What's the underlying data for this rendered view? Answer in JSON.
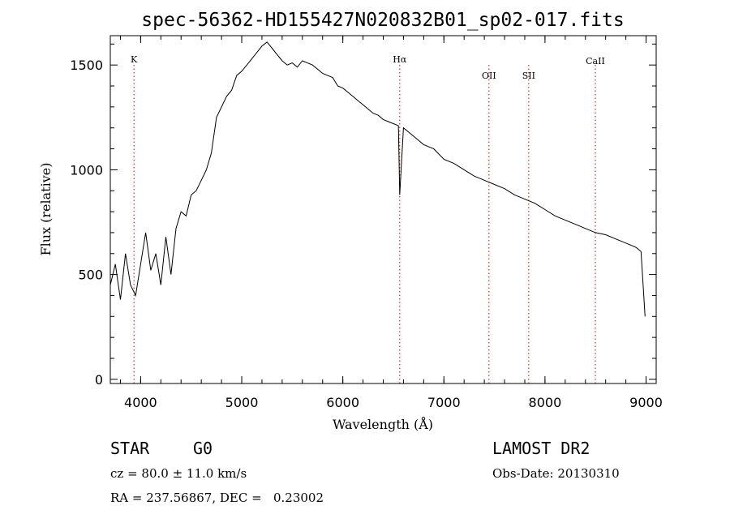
{
  "chart_data": {
    "type": "line",
    "title": "spec-56362-HD155427N020832B01_sp02-017.fits",
    "xlabel": "Wavelength (Å)",
    "ylabel": "Flux (relative)",
    "xlim": [
      3700,
      9100
    ],
    "ylim": [
      -20,
      1640
    ],
    "x_ticks": [
      4000,
      5000,
      6000,
      7000,
      8000,
      9000
    ],
    "y_ticks": [
      0,
      500,
      1000,
      1500
    ],
    "grid": false,
    "line_color": "#000000",
    "marker_color": "#cc0000",
    "lines": [
      {
        "label": "K",
        "x": 3934
      },
      {
        "label": "Hα",
        "x": 6563
      },
      {
        "label": "OII",
        "x": 7446
      },
      {
        "label": "SII",
        "x": 7839
      },
      {
        "label": "CaII",
        "x": 8498
      }
    ],
    "series": [
      {
        "x": [
          3700,
          3750,
          3800,
          3850,
          3900,
          3950,
          4000,
          4050,
          4100,
          4150,
          4200,
          4250,
          4300,
          4350,
          4400,
          4450,
          4500,
          4550,
          4600,
          4650,
          4700,
          4750,
          4800,
          4850,
          4900,
          4950,
          5000,
          5050,
          5100,
          5150,
          5200,
          5250,
          5300,
          5350,
          5400,
          5450,
          5500,
          5550,
          5600,
          5650,
          5700,
          5750,
          5800,
          5850,
          5900,
          5950,
          6000,
          6050,
          6100,
          6150,
          6200,
          6250,
          6300,
          6350,
          6400,
          6450,
          6500,
          6550,
          6563,
          6600,
          6650,
          6700,
          6800,
          6900,
          7000,
          7100,
          7200,
          7300,
          7400,
          7500,
          7600,
          7700,
          7800,
          7900,
          8000,
          8100,
          8200,
          8300,
          8400,
          8500,
          8600,
          8700,
          8800,
          8900,
          8950,
          8990
        ],
        "y": [
          450,
          550,
          380,
          600,
          450,
          400,
          550,
          700,
          520,
          600,
          450,
          680,
          500,
          720,
          800,
          780,
          880,
          900,
          950,
          1000,
          1080,
          1250,
          1300,
          1350,
          1380,
          1450,
          1470,
          1500,
          1530,
          1560,
          1590,
          1610,
          1580,
          1550,
          1520,
          1500,
          1510,
          1490,
          1520,
          1510,
          1500,
          1480,
          1460,
          1450,
          1440,
          1400,
          1390,
          1370,
          1350,
          1330,
          1310,
          1290,
          1270,
          1260,
          1240,
          1230,
          1220,
          1210,
          880,
          1200,
          1180,
          1160,
          1120,
          1100,
          1050,
          1030,
          1000,
          970,
          950,
          930,
          910,
          880,
          860,
          840,
          810,
          780,
          760,
          740,
          720,
          700,
          690,
          670,
          650,
          630,
          610,
          300
        ]
      }
    ]
  },
  "info": {
    "class_label": "STAR",
    "subclass_label": "G0",
    "survey_label": "LAMOST DR2",
    "cz_text": "cz = 80.0 ± 11.0 km/s",
    "obs_date_text": "Obs-Date: 20130310",
    "coords_text": "RA = 237.56867, DEC =   0.23002"
  }
}
